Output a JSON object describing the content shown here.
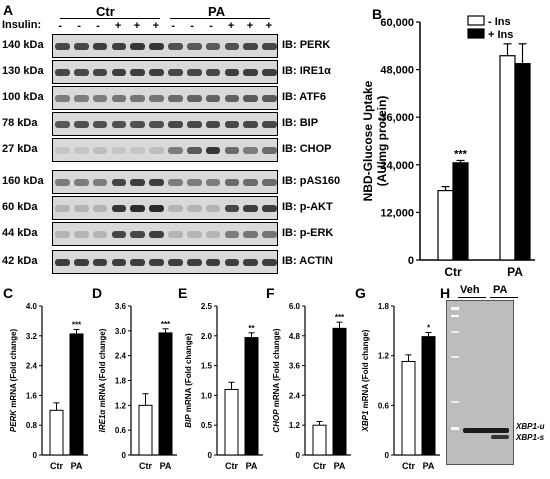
{
  "panel_a": {
    "letter": "A",
    "insulin_label": "Insulin:",
    "group_ctr": "Ctr",
    "group_pa": "PA",
    "insulin_marks": [
      "-",
      "-",
      "-",
      "+",
      "+",
      "+",
      "-",
      "-",
      "-",
      "+",
      "+",
      "+"
    ],
    "rows": [
      {
        "kda": "140 kDa",
        "ib": "IB: PERK",
        "bands": [
          0.8,
          0.8,
          0.85,
          0.85,
          0.9,
          0.9,
          0.75,
          0.7,
          0.7,
          0.75,
          0.8,
          0.8
        ]
      },
      {
        "kda": "130 kDa",
        "ib": "IB: IRE1α",
        "bands": [
          0.8,
          0.8,
          0.8,
          0.85,
          0.85,
          0.85,
          0.8,
          0.8,
          0.8,
          0.85,
          0.85,
          0.85
        ]
      },
      {
        "kda": "100 kDa",
        "ib": "IB: ATF6",
        "bands": [
          0.5,
          0.5,
          0.5,
          0.55,
          0.55,
          0.55,
          0.6,
          0.65,
          0.65,
          0.65,
          0.7,
          0.7
        ]
      },
      {
        "kda": "78 kDa",
        "ib": "IB: BIP",
        "bands": [
          0.7,
          0.75,
          0.75,
          0.75,
          0.75,
          0.75,
          0.8,
          0.8,
          0.8,
          0.8,
          0.8,
          0.8
        ]
      },
      {
        "kda": "27 kDa",
        "ib": "IB: CHOP",
        "bands": [
          0.1,
          0.1,
          0.15,
          0.1,
          0.1,
          0.15,
          0.5,
          0.7,
          0.9,
          0.6,
          0.5,
          0.6
        ]
      },
      {
        "kda": "160 kDa",
        "ib": "IB: pAS160",
        "bands": [
          0.5,
          0.5,
          0.5,
          0.8,
          0.85,
          0.85,
          0.5,
          0.5,
          0.5,
          0.6,
          0.6,
          0.6
        ]
      },
      {
        "kda": "60 kDa",
        "ib": "IB: p-AKT",
        "bands": [
          0.2,
          0.2,
          0.2,
          0.9,
          0.95,
          0.95,
          0.2,
          0.2,
          0.2,
          0.8,
          0.85,
          0.85
        ]
      },
      {
        "kda": "44 kDa",
        "ib": "IB: p-ERK",
        "bands": [
          0.2,
          0.2,
          0.2,
          0.8,
          0.8,
          0.85,
          0.2,
          0.2,
          0.2,
          0.5,
          0.55,
          0.55
        ]
      },
      {
        "kda": "42 kDa",
        "ib": "IB: ACTIN",
        "bands": [
          0.85,
          0.85,
          0.85,
          0.85,
          0.85,
          0.85,
          0.85,
          0.85,
          0.85,
          0.85,
          0.85,
          0.85
        ]
      }
    ]
  },
  "chart_data": [
    {
      "panel": "B",
      "type": "bar",
      "categories": [
        "Ctr",
        "PA"
      ],
      "series": [
        {
          "name": "- Ins",
          "values": [
            17500,
            51500
          ],
          "errors": [
            1000,
            3000
          ]
        },
        {
          "name": "+ Ins",
          "values": [
            24500,
            49500
          ],
          "errors": [
            600,
            5000
          ]
        }
      ],
      "ylabel_line1": "NBD-Glucose Uptake",
      "ylabel_line2": "(AU/mg protein)",
      "ylim": [
        0,
        60000
      ],
      "yticks": [
        "0",
        "12,000",
        "24,000",
        "36,000",
        "48,000",
        "60,000"
      ],
      "annotations": [
        "***"
      ],
      "legend_position": "top-left",
      "colors": {
        "minus": "#ffffff",
        "plus": "#000000"
      }
    },
    {
      "panel": "C",
      "type": "bar",
      "gene": "PERK",
      "ylabel_suffix": " mRNA (Fold change)",
      "categories": [
        "Ctr",
        "PA"
      ],
      "values": [
        1.2,
        3.25
      ],
      "errors": [
        0.2,
        0.12
      ],
      "ylim": [
        0,
        4.0
      ],
      "yticks": [
        "0",
        "0.8",
        "1.6",
        "2.4",
        "3.2",
        "4.0"
      ],
      "sig": "***"
    },
    {
      "panel": "D",
      "type": "bar",
      "gene": "IRE1α",
      "ylabel_suffix": " mRNA (Fold change)",
      "categories": [
        "Ctr",
        "PA"
      ],
      "values": [
        1.2,
        2.95
      ],
      "errors": [
        0.28,
        0.1
      ],
      "ylim": [
        0,
        3.6
      ],
      "yticks": [
        "0",
        "0.6",
        "1.2",
        "1.8",
        "2.4",
        "3.0",
        "3.6"
      ],
      "sig": "***"
    },
    {
      "panel": "E",
      "type": "bar",
      "gene": "BIP",
      "ylabel_suffix": " mRNA (Fold change)",
      "categories": [
        "Ctr",
        "PA"
      ],
      "values": [
        1.1,
        1.97
      ],
      "errors": [
        0.12,
        0.08
      ],
      "ylim": [
        0,
        2.5
      ],
      "yticks": [
        "0",
        "0.5",
        "1.0",
        "1.5",
        "2.0",
        "2.5"
      ],
      "sig": "**"
    },
    {
      "panel": "F",
      "type": "bar",
      "gene": "CHOP",
      "ylabel_suffix": " mRNA (Fold change)",
      "categories": [
        "Ctr",
        "PA"
      ],
      "values": [
        1.2,
        5.1
      ],
      "errors": [
        0.15,
        0.25
      ],
      "ylim": [
        0,
        6.0
      ],
      "yticks": [
        "0",
        "1.2",
        "2.4",
        "3.6",
        "4.8",
        "6.0"
      ],
      "sig": "***"
    },
    {
      "panel": "G",
      "type": "bar",
      "gene": "XBP1",
      "ylabel_suffix": " mRNA (Fold change)",
      "categories": [
        "Ctr",
        "PA"
      ],
      "values": [
        1.13,
        1.43
      ],
      "errors": [
        0.08,
        0.05
      ],
      "ylim": [
        0,
        1.8
      ],
      "yticks": [
        "0",
        "0.6",
        "1.2",
        "1.8"
      ],
      "sig": "*"
    }
  ],
  "panel_h": {
    "letter": "H",
    "group_veh": "Veh",
    "group_pa": "PA",
    "label_u": "XBP1-u",
    "label_s": "XBP1-s"
  },
  "letters": {
    "b": "B",
    "c": "C",
    "d": "D",
    "e": "E",
    "f": "F",
    "g": "G"
  }
}
